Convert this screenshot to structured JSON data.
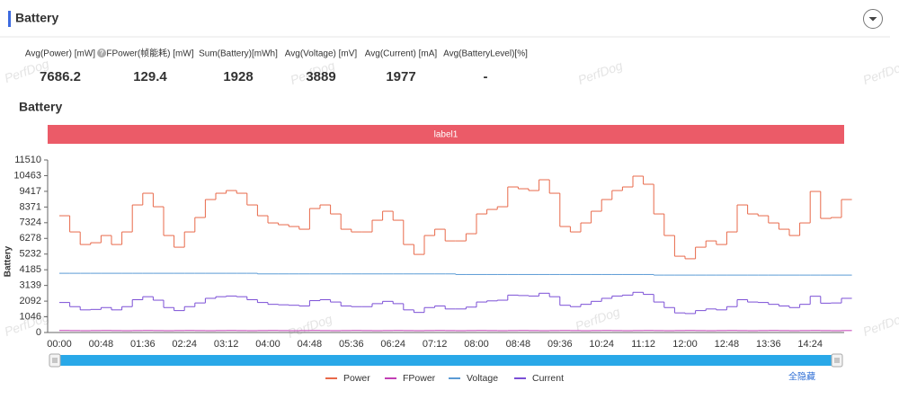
{
  "header": {
    "title": "Battery"
  },
  "help_icon": "?",
  "watermark": "PerfDog",
  "stats": [
    {
      "label": "Avg(Power) [mW]",
      "value": "7686.2"
    },
    {
      "label": "FPower(帧能耗) [mW]",
      "value": "129.4"
    },
    {
      "label": "Sum(Battery)[mWh]",
      "value": "1928"
    },
    {
      "label": "Avg(Voltage) [mV]",
      "value": "3889"
    },
    {
      "label": "Avg(Current) [mA]",
      "value": "1977"
    },
    {
      "label": "Avg(BatteryLevel)[%]",
      "value": "-"
    }
  ],
  "hide_all": "全隐藏",
  "chart_data": {
    "type": "step-line",
    "title": "Battery",
    "band_label": "label1",
    "ylabel": "Battery",
    "categories": [
      "00:00",
      null,
      null,
      null,
      "00:48",
      null,
      null,
      null,
      "01:36",
      null,
      null,
      null,
      "02:24",
      null,
      null,
      null,
      "03:12",
      null,
      null,
      null,
      "04:00",
      null,
      null,
      null,
      "04:48",
      null,
      null,
      null,
      "05:36",
      null,
      null,
      null,
      "06:24",
      null,
      null,
      null,
      "07:12",
      null,
      null,
      null,
      "08:00",
      null,
      null,
      null,
      "08:48",
      null,
      null,
      null,
      "09:36",
      null,
      null,
      null,
      "10:24",
      null,
      null,
      null,
      "11:12",
      null,
      null,
      null,
      "12:00",
      null,
      null,
      null,
      "12:48",
      null,
      null,
      null,
      "13:36",
      null,
      null,
      null,
      "14:24",
      null,
      null,
      null
    ],
    "ylim": [
      0,
      11510
    ],
    "yticks": [
      0,
      1046,
      2092,
      3139,
      4185,
      5232,
      6278,
      7324,
      8371,
      9417,
      10463,
      11510
    ],
    "grid": false,
    "series": [
      {
        "name": "Power",
        "color": "#e8694a",
        "values": [
          7790,
          6710,
          5870,
          5990,
          6470,
          5870,
          6710,
          8510,
          9290,
          8390,
          6470,
          5690,
          6710,
          7670,
          8870,
          9290,
          9470,
          9290,
          8510,
          7790,
          7310,
          7190,
          7070,
          6890,
          8270,
          8510,
          7910,
          6890,
          6710,
          6710,
          7490,
          8090,
          7490,
          5870,
          5210,
          6470,
          6890,
          6110,
          6110,
          6590,
          7910,
          8210,
          8390,
          9710,
          9590,
          9470,
          10190,
          9290,
          7070,
          6710,
          7310,
          8090,
          8870,
          9470,
          9710,
          10430,
          9890,
          7910,
          6470,
          5090,
          4920,
          5690,
          6110,
          5870,
          6710,
          8510,
          7910,
          7790,
          7310,
          6890,
          6470,
          7310,
          9410,
          7610,
          7670,
          8870
        ]
      },
      {
        "name": "FPower",
        "color": "#c23fb5",
        "values": [
          135,
          128,
          122,
          130,
          135,
          128,
          122,
          130,
          135,
          128,
          122,
          130,
          135,
          128,
          122,
          130,
          135,
          128,
          122,
          130,
          135,
          128,
          122,
          130,
          135,
          128,
          122,
          130,
          135,
          128,
          122,
          130,
          135,
          128,
          122,
          130,
          135,
          128,
          122,
          130,
          135,
          128,
          122,
          130,
          135,
          128,
          122,
          130,
          135,
          128,
          122,
          130,
          135,
          128,
          122,
          130,
          135,
          128,
          122,
          130,
          135,
          128,
          122,
          130,
          135,
          128,
          122,
          130,
          135,
          128,
          122,
          130,
          135,
          128,
          122,
          130
        ]
      },
      {
        "name": "Voltage",
        "color": "#5b9bd5",
        "values": [
          3950,
          3950,
          3950,
          3950,
          3950,
          3950,
          3950,
          3950,
          3950,
          3950,
          3950,
          3950,
          3950,
          3950,
          3950,
          3950,
          3950,
          3950,
          3950,
          3910,
          3910,
          3910,
          3910,
          3910,
          3910,
          3910,
          3910,
          3910,
          3910,
          3910,
          3910,
          3910,
          3910,
          3910,
          3910,
          3910,
          3910,
          3910,
          3870,
          3870,
          3870,
          3870,
          3870,
          3870,
          3870,
          3870,
          3870,
          3870,
          3870,
          3870,
          3870,
          3870,
          3870,
          3870,
          3870,
          3870,
          3870,
          3830,
          3830,
          3830,
          3830,
          3830,
          3830,
          3830,
          3830,
          3830,
          3830,
          3830,
          3830,
          3830,
          3830,
          3830,
          3830,
          3830,
          3830,
          3830
        ]
      },
      {
        "name": "Current",
        "color": "#7b4fd6",
        "values": [
          2002,
          1724,
          1509,
          1539,
          1663,
          1509,
          1724,
          2187,
          2388,
          2156,
          1663,
          1462,
          1724,
          1971,
          2280,
          2388,
          2434,
          2388,
          2187,
          2002,
          1879,
          1848,
          1817,
          1771,
          2125,
          2187,
          2033,
          1771,
          1724,
          1724,
          1925,
          2079,
          1925,
          1509,
          1339,
          1663,
          1771,
          1570,
          1570,
          1694,
          2033,
          2110,
          2156,
          2495,
          2465,
          2434,
          2619,
          2388,
          1817,
          1724,
          1879,
          2079,
          2280,
          2434,
          2495,
          2681,
          2542,
          2033,
          1663,
          1308,
          1264,
          1462,
          1570,
          1509,
          1724,
          2187,
          2033,
          2002,
          1879,
          1771,
          1663,
          1879,
          2418,
          1956,
          1971,
          2280
        ]
      }
    ]
  }
}
